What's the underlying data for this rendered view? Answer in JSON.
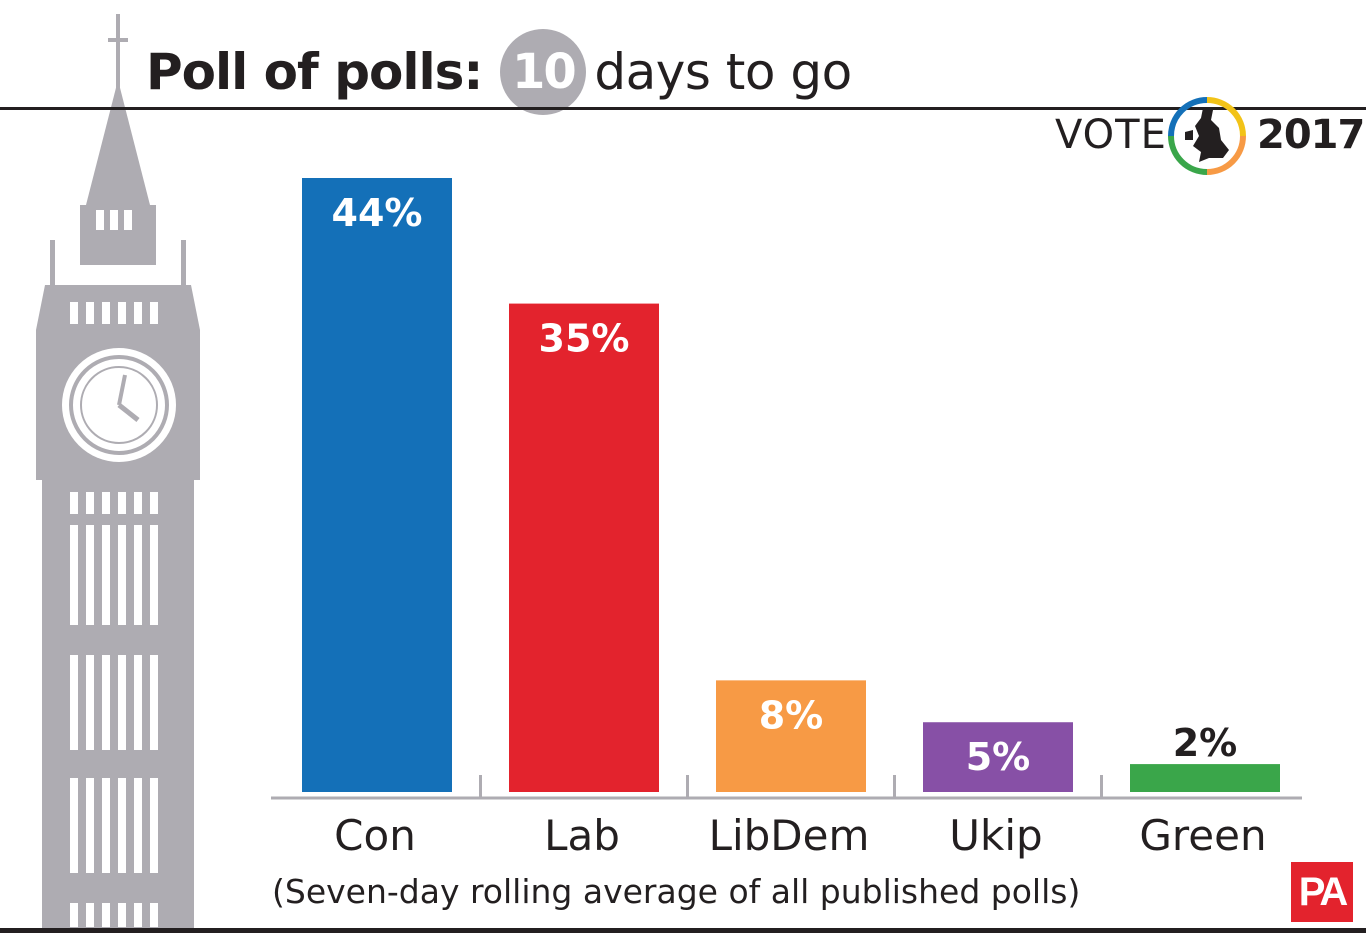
{
  "header": {
    "title_bold": "Poll of polls:",
    "title_badge": "10",
    "title_rest": "days to go"
  },
  "branding": {
    "vote_word": "VOTE",
    "vote_year": "2017",
    "publisher": "PA",
    "publisher_color": "#e3232d"
  },
  "footnote": "(Seven-day rolling average of all published polls)",
  "decoration": {
    "illustration": "big-ben-silhouette",
    "color": "#aeacb2"
  },
  "chart_data": {
    "type": "bar",
    "categories": [
      "Con",
      "Lab",
      "LibDem",
      "Ukip",
      "Green"
    ],
    "values": [
      44,
      35,
      8,
      5,
      2
    ],
    "value_labels": [
      "44%",
      "35%",
      "8%",
      "5%",
      "2%"
    ],
    "colors": [
      "#1470b8",
      "#e3232d",
      "#f79a45",
      "#8750a6",
      "#3aa64a"
    ],
    "label_colors": [
      "#ffffff",
      "#ffffff",
      "#ffffff",
      "#ffffff",
      "#231f20"
    ],
    "ylim": [
      0,
      44
    ],
    "grid": false,
    "legend": "none"
  }
}
